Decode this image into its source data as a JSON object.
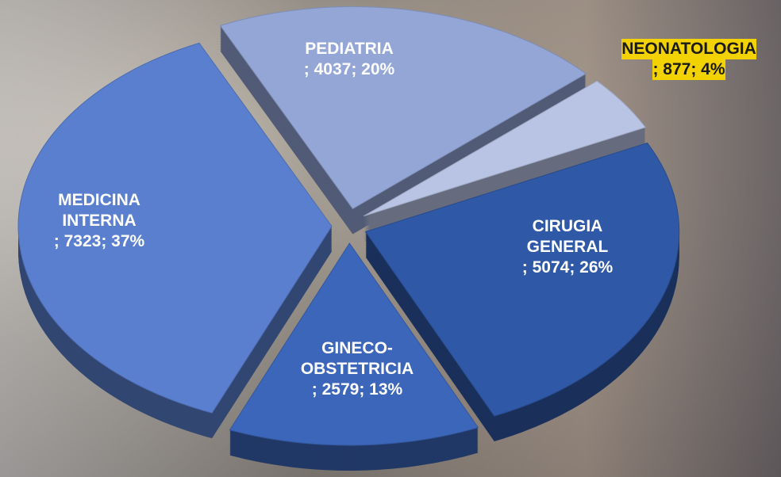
{
  "chart_data": {
    "type": "pie",
    "categories": [
      "PEDIATRIA",
      "NEONATOLOGIA",
      "CIRUGIA GENERAL",
      "GINECO-OBSTETRICIA",
      "MEDICINA INTERNA"
    ],
    "values": [
      4037,
      877,
      5074,
      2579,
      7323
    ],
    "value_labels": [
      "; 4037; 20%",
      "; 877; 4%",
      "; 5074; 26%",
      "; 2579; 13%",
      "; 7323; 37%"
    ],
    "colors": [
      "#94a6d6",
      "#b9c4e4",
      "#2f58a6",
      "#3c66b9",
      "#5b7fcf"
    ]
  }
}
